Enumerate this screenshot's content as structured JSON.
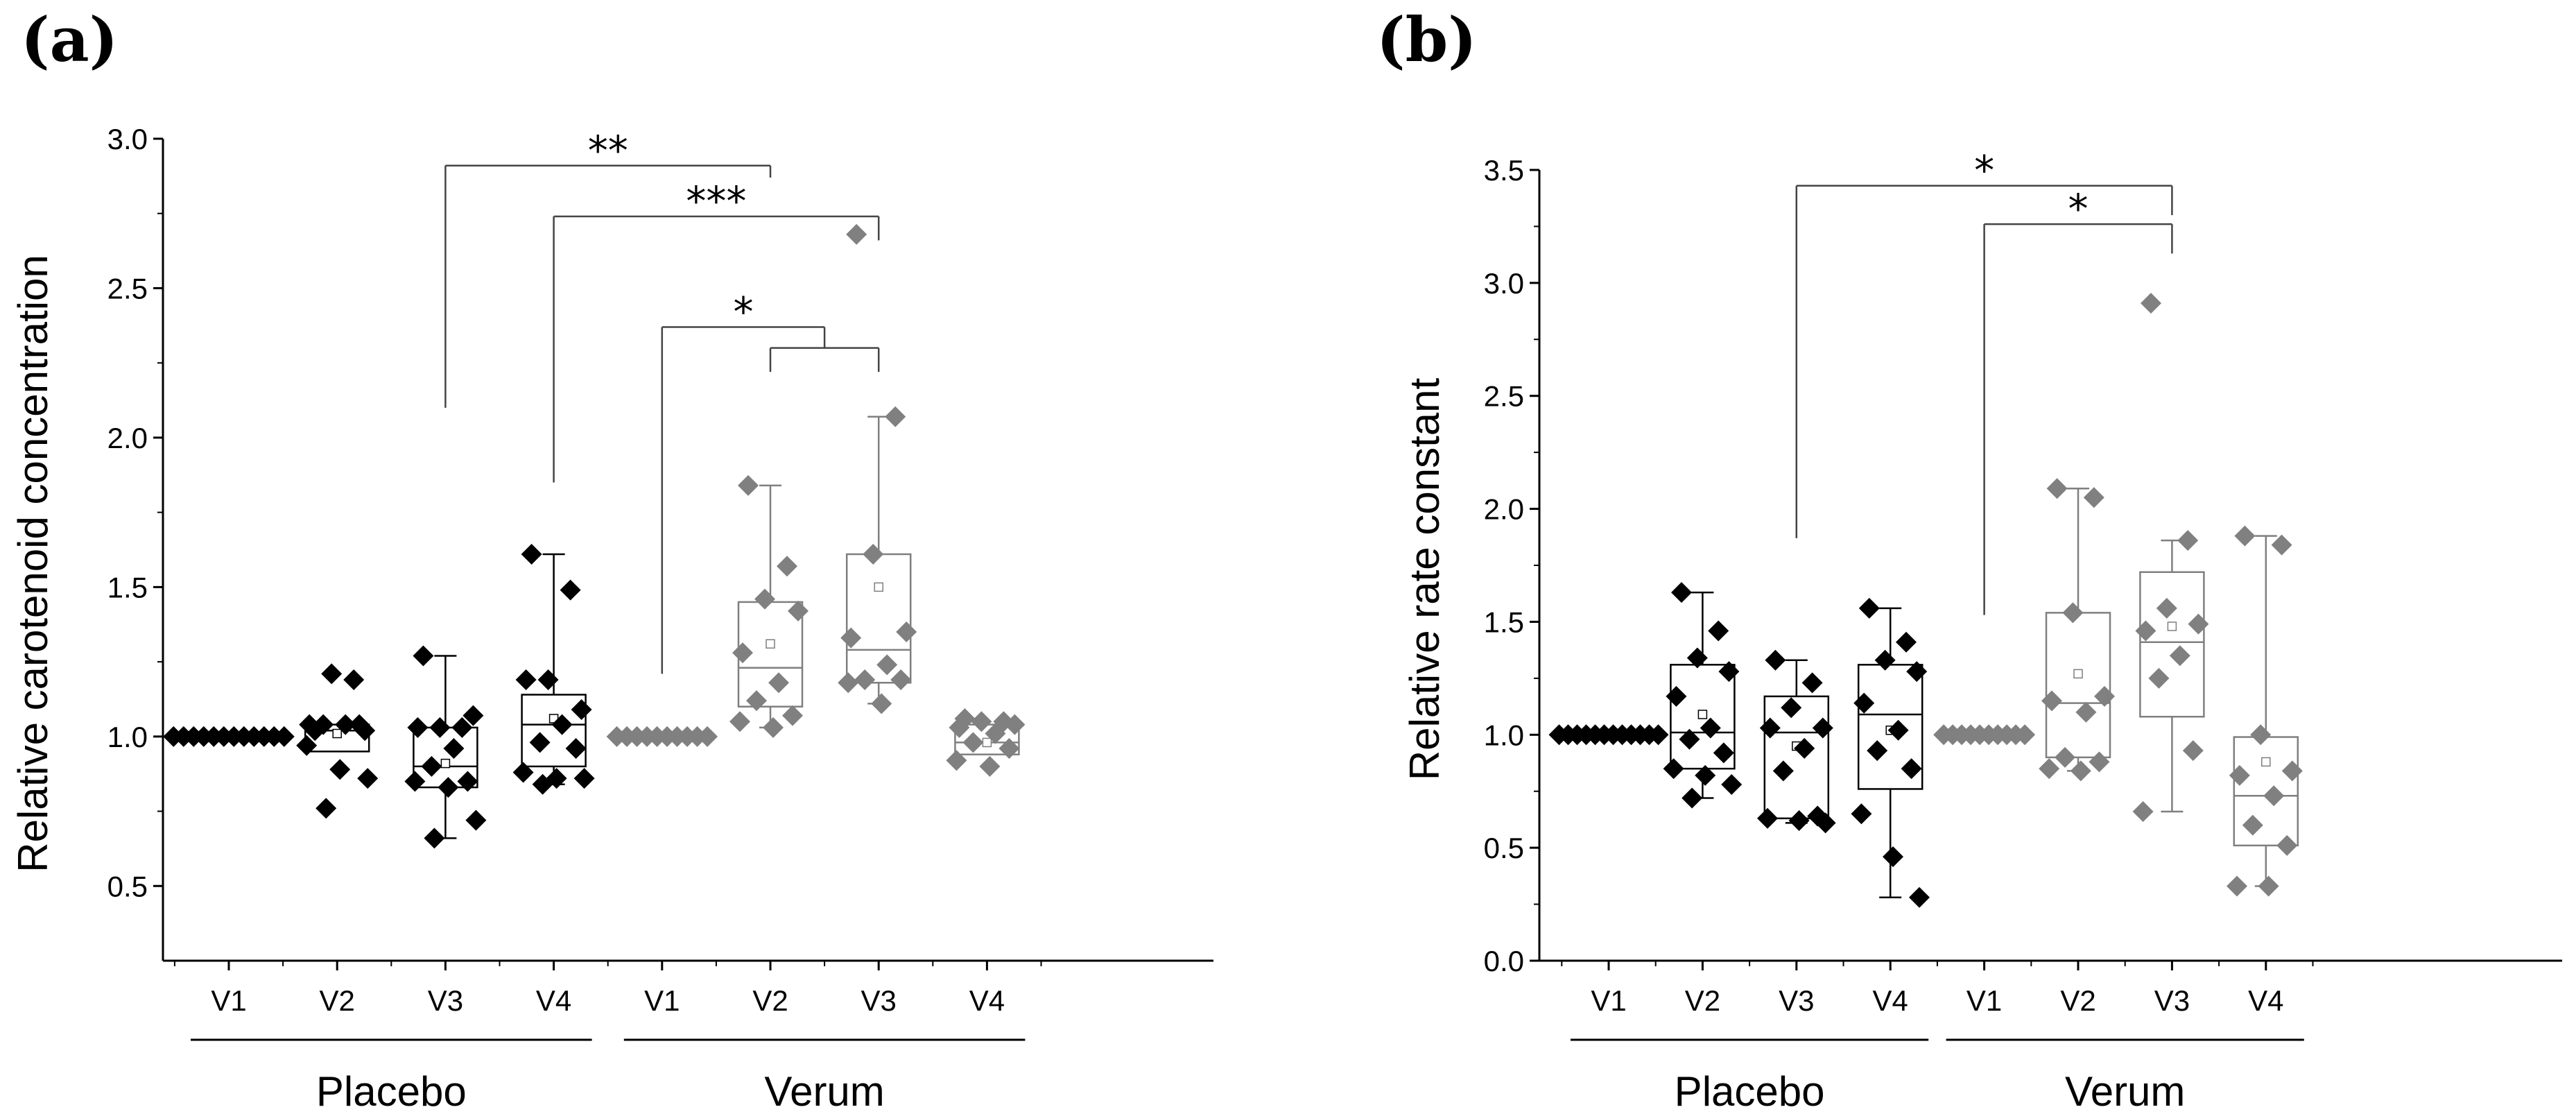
{
  "chart_data": [
    {
      "panel_label": "(a)",
      "type": "box",
      "ylabel": "Relative carotenoid concentration",
      "xlabel": "",
      "ylim": [
        0.25,
        3.0
      ],
      "yticks": [
        "0.5",
        "1.0",
        "1.5",
        "2.0",
        "2.5",
        "3.0"
      ],
      "categories": [
        "V1",
        "V2",
        "V3",
        "V4",
        "V1",
        "V2",
        "V3",
        "V4"
      ],
      "groups": [
        {
          "name": "Placebo",
          "from": 0,
          "to": 3
        },
        {
          "name": "Verum",
          "from": 4,
          "to": 7
        }
      ],
      "colors": {
        "placebo": "#000000",
        "verum": "#808080"
      },
      "series": [
        {
          "name": "Placebo V1",
          "group": "placebo",
          "box": null,
          "points": [
            1.0,
            1.0,
            1.0,
            1.0,
            1.0,
            1.0,
            1.0,
            1.0,
            1.0,
            1.0,
            1.0,
            1.0
          ]
        },
        {
          "name": "Placebo V2",
          "group": "placebo",
          "box": {
            "q1": 0.95,
            "median": 1.02,
            "q3": 1.04,
            "mean": 1.01
          },
          "points": [
            1.02,
            1.19,
            1.21,
            1.02,
            1.04,
            1.04,
            1.04,
            1.04,
            0.97,
            0.89,
            0.86,
            0.76
          ]
        },
        {
          "name": "Placebo V3",
          "group": "placebo",
          "box": {
            "q1": 0.83,
            "median": 0.9,
            "q3": 1.03,
            "mean": 0.91,
            "whisker_low": 0.66,
            "whisker_high": 1.27
          },
          "points": [
            1.27,
            1.03,
            1.03,
            1.07,
            1.03,
            0.96,
            0.9,
            0.85,
            0.85,
            0.83,
            0.72,
            0.66
          ]
        },
        {
          "name": "Placebo V4",
          "group": "placebo",
          "box": {
            "q1": 0.9,
            "median": 1.04,
            "q3": 1.14,
            "mean": 1.06,
            "whisker_low": 0.84,
            "whisker_high": 1.61
          },
          "points": [
            1.61,
            1.49,
            1.19,
            1.09,
            1.19,
            1.04,
            0.98,
            0.96,
            0.88,
            0.86,
            0.86,
            0.84
          ]
        },
        {
          "name": "Verum V1",
          "group": "verum",
          "box": null,
          "points": [
            1.0,
            1.0,
            1.0,
            1.0,
            1.0,
            1.0,
            1.0,
            1.0,
            1.0,
            1.0
          ]
        },
        {
          "name": "Verum V2",
          "group": "verum",
          "box": {
            "q1": 1.1,
            "median": 1.23,
            "q3": 1.45,
            "mean": 1.31,
            "whisker_low": 1.03,
            "whisker_high": 1.84
          },
          "points": [
            1.84,
            1.57,
            1.46,
            1.42,
            1.28,
            1.18,
            1.12,
            1.07,
            1.05,
            1.03
          ]
        },
        {
          "name": "Verum V3",
          "group": "verum",
          "box": {
            "q1": 1.18,
            "median": 1.29,
            "q3": 1.61,
            "mean": 1.5,
            "whisker_low": 1.11,
            "whisker_high": 2.07
          },
          "points": [
            2.68,
            2.07,
            1.61,
            1.35,
            1.33,
            1.24,
            1.19,
            1.19,
            1.18,
            1.11
          ]
        },
        {
          "name": "Verum V4",
          "group": "verum",
          "box": {
            "q1": 0.94,
            "median": 0.98,
            "q3": 1.04,
            "mean": 0.98
          },
          "points": [
            1.06,
            1.05,
            1.05,
            1.04,
            1.03,
            1.01,
            0.98,
            0.96,
            0.92,
            0.9
          ]
        }
      ],
      "significance": [
        {
          "label": "**",
          "from": 2,
          "to": 5
        },
        {
          "label": "***",
          "from": 3,
          "to": 6
        },
        {
          "label": "*",
          "from": 4,
          "to": "5-6"
        }
      ]
    },
    {
      "panel_label": "(b)",
      "type": "box",
      "ylabel": "Relative rate constant",
      "xlabel": "",
      "ylim": [
        0.0,
        3.5
      ],
      "yticks": [
        "0.0",
        "0.5",
        "1.0",
        "1.5",
        "2.0",
        "2.5",
        "3.0",
        "3.5"
      ],
      "categories": [
        "V1",
        "V2",
        "V3",
        "V4",
        "V1",
        "V2",
        "V3",
        "V4"
      ],
      "groups": [
        {
          "name": "Placebo",
          "from": 0,
          "to": 3
        },
        {
          "name": "Verum",
          "from": 4,
          "to": 7
        }
      ],
      "colors": {
        "placebo": "#000000",
        "verum": "#808080"
      },
      "series": [
        {
          "name": "Placebo V1",
          "group": "placebo",
          "box": null,
          "points": [
            1.0,
            1.0,
            1.0,
            1.0,
            1.0,
            1.0,
            1.0,
            1.0,
            1.0,
            1.0,
            1.0,
            1.0
          ]
        },
        {
          "name": "Placebo V2",
          "group": "placebo",
          "box": {
            "q1": 0.85,
            "median": 1.01,
            "q3": 1.31,
            "mean": 1.09,
            "whisker_low": 0.72,
            "whisker_high": 1.63
          },
          "points": [
            1.63,
            1.46,
            1.34,
            1.28,
            1.17,
            1.03,
            0.98,
            0.92,
            0.85,
            0.82,
            0.78,
            0.72
          ]
        },
        {
          "name": "Placebo V3",
          "group": "placebo",
          "box": {
            "q1": 0.63,
            "median": 1.01,
            "q3": 1.17,
            "mean": 0.95,
            "whisker_low": 0.61,
            "whisker_high": 1.33
          },
          "points": [
            1.33,
            1.23,
            1.12,
            1.03,
            1.03,
            0.94,
            0.84,
            0.64,
            0.63,
            0.62,
            0.61
          ]
        },
        {
          "name": "Placebo V4",
          "group": "placebo",
          "box": {
            "q1": 0.76,
            "median": 1.09,
            "q3": 1.31,
            "mean": 1.02,
            "whisker_low": 0.28,
            "whisker_high": 1.56
          },
          "points": [
            1.56,
            1.41,
            1.33,
            1.28,
            1.14,
            1.02,
            0.93,
            0.85,
            0.65,
            0.46,
            0.28
          ]
        },
        {
          "name": "Verum V1",
          "group": "verum",
          "box": null,
          "points": [
            1.0,
            1.0,
            1.0,
            1.0,
            1.0,
            1.0,
            1.0,
            1.0,
            1.0,
            1.0
          ]
        },
        {
          "name": "Verum V2",
          "group": "verum",
          "box": {
            "q1": 0.9,
            "median": 1.14,
            "q3": 1.54,
            "mean": 1.27,
            "whisker_low": 0.84,
            "whisker_high": 2.09
          },
          "points": [
            2.09,
            2.05,
            1.54,
            1.17,
            1.15,
            1.1,
            0.9,
            0.88,
            0.85,
            0.84
          ]
        },
        {
          "name": "Verum V3",
          "group": "verum",
          "box": {
            "q1": 1.08,
            "median": 1.41,
            "q3": 1.72,
            "mean": 1.48,
            "whisker_low": 0.66,
            "whisker_high": 1.86
          },
          "points": [
            2.91,
            1.86,
            1.56,
            1.49,
            1.46,
            1.35,
            1.25,
            0.93,
            0.66
          ]
        },
        {
          "name": "Verum V4",
          "group": "verum",
          "box": {
            "q1": 0.51,
            "median": 0.73,
            "q3": 0.99,
            "mean": 0.88,
            "whisker_low": 0.33,
            "whisker_high": 1.88
          },
          "points": [
            1.88,
            1.84,
            1.0,
            0.84,
            0.82,
            0.73,
            0.6,
            0.51,
            0.33,
            0.33
          ]
        }
      ],
      "significance": [
        {
          "label": "*",
          "from": 2,
          "to": 6
        },
        {
          "label": "*",
          "from": 4,
          "to": 6
        }
      ]
    }
  ]
}
